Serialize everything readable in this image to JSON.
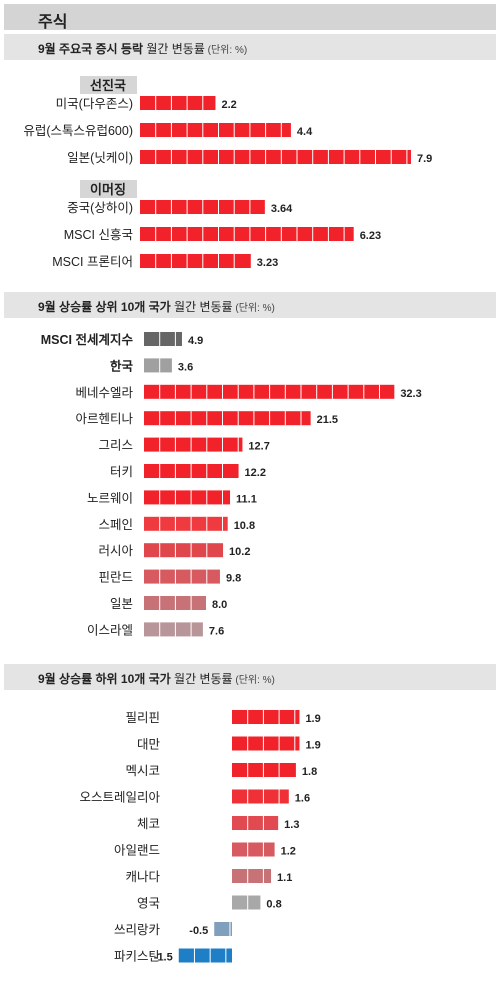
{
  "page": {
    "title": "주식"
  },
  "sections": [
    {
      "title_bold": "9월 주요국 증시 등락",
      "title_rest": " 월간 변동률",
      "unit": " (단위: %)"
    },
    {
      "title_bold": "9월 상승률 상위 10개 국가",
      "title_rest": " 월간 변동률",
      "unit": " (단위: %)"
    },
    {
      "title_bold": "9월 상승률 하위 10개 국가",
      "title_rest": " 월간 변동률",
      "unit": " (단위: %)"
    }
  ],
  "chart_data": [
    {
      "type": "bar",
      "orientation": "horizontal",
      "title": "9월 주요국 증시 등락 월간 변동률 (단위: %)",
      "groups": [
        {
          "name": "선진국",
          "categories": [
            "미국(다우존스)",
            "유럽(스톡스유럽600)",
            "일본(닛케이)"
          ],
          "values": [
            2.2,
            4.4,
            7.9
          ],
          "labels": [
            "2.2",
            "4.4",
            "7.9"
          ]
        },
        {
          "name": "이머징",
          "categories": [
            "중국(상하이)",
            "MSCI 신흥국",
            "MSCI 프론티어"
          ],
          "values": [
            3.64,
            6.23,
            3.23
          ],
          "labels": [
            "3.64",
            "6.23",
            "3.23"
          ]
        }
      ],
      "colors": {
        "bar": "#f2222a"
      }
    },
    {
      "type": "bar",
      "orientation": "horizontal",
      "title": "9월 상승률 상위 10개 국가 월간 변동률 (단위: %)",
      "categories": [
        "MSCI 전세계지수",
        "한국",
        "베네수엘라",
        "아르헨티나",
        "그리스",
        "터키",
        "노르웨이",
        "스페인",
        "러시아",
        "핀란드",
        "일본",
        "이스라엘"
      ],
      "values": [
        4.9,
        3.6,
        32.3,
        21.5,
        12.7,
        12.2,
        11.1,
        10.8,
        10.2,
        9.8,
        8.0,
        7.6
      ],
      "labels": [
        "4.9",
        "3.6",
        "32.3",
        "21.5",
        "12.7",
        "12.2",
        "11.1",
        "10.8",
        "10.2",
        "9.8",
        "8.0",
        "7.6"
      ],
      "bold_categories": [
        "MSCI 전세계지수",
        "한국"
      ],
      "colors": [
        "#666666",
        "#a0a0a0",
        "#f2222a",
        "#f2222a",
        "#f2222a",
        "#f2222a",
        "#f2222a",
        "#ef3a3f",
        "#e0474d",
        "#d65a60",
        "#c77277",
        "#b89598"
      ]
    },
    {
      "type": "bar",
      "orientation": "horizontal",
      "title": "9월 상승률 하위 10개 국가 월간 변동률 (단위: %)",
      "categories": [
        "필리핀",
        "대만",
        "멕시코",
        "오스트레일리아",
        "체코",
        "아일랜드",
        "캐나다",
        "영국",
        "쓰리랑카",
        "파키스탄"
      ],
      "values": [
        1.9,
        1.9,
        1.8,
        1.6,
        1.3,
        1.2,
        1.1,
        0.8,
        -0.5,
        -1.5
      ],
      "labels": [
        "1.9",
        "1.9",
        "1.8",
        "1.6",
        "1.3",
        "1.2",
        "1.1",
        "0.8",
        "-0.5",
        "-1.5"
      ],
      "colors": [
        "#f2222a",
        "#f2222a",
        "#f2222a",
        "#ef3036",
        "#e04a50",
        "#d65a60",
        "#c77277",
        "#a8a8a8",
        "#7f9fbd",
        "#1f7fc6"
      ]
    }
  ]
}
